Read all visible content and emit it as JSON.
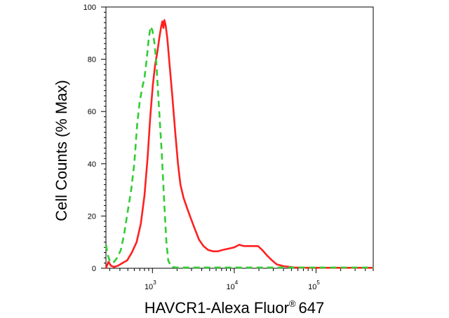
{
  "chart_data": {
    "type": "line",
    "xlabel": "HAVCR1-Alexa Fluor",
    "xlabel_sup": "®",
    "xlabel_suffix": "647",
    "ylabel": "Cell Counts (% Max)",
    "x_scale": "log",
    "xlim": [
      270,
      500000
    ],
    "ylim": [
      0,
      100
    ],
    "y_ticks": [
      0,
      20,
      40,
      60,
      80,
      100
    ],
    "x_ticks": [
      {
        "base": "10",
        "exp": "3",
        "value": 1000
      },
      {
        "base": "10",
        "exp": "4",
        "value": 10000
      },
      {
        "base": "10",
        "exp": "5",
        "value": 100000
      }
    ],
    "series": [
      {
        "color": "#ff2020",
        "dash": "solid",
        "points": [
          [
            270,
            0
          ],
          [
            290,
            2.5
          ],
          [
            310,
            1
          ],
          [
            340,
            0.5
          ],
          [
            380,
            1
          ],
          [
            430,
            2
          ],
          [
            490,
            3
          ],
          [
            560,
            6
          ],
          [
            640,
            10
          ],
          [
            720,
            17
          ],
          [
            800,
            28
          ],
          [
            870,
            42
          ],
          [
            940,
            58
          ],
          [
            1010,
            70
          ],
          [
            1080,
            78
          ],
          [
            1150,
            83
          ],
          [
            1210,
            88
          ],
          [
            1270,
            92
          ],
          [
            1320,
            94.5
          ],
          [
            1360,
            92
          ],
          [
            1400,
            95
          ],
          [
            1450,
            93
          ],
          [
            1520,
            88
          ],
          [
            1620,
            78
          ],
          [
            1760,
            65
          ],
          [
            1900,
            52
          ],
          [
            2050,
            40
          ],
          [
            2200,
            32
          ],
          [
            2400,
            27
          ],
          [
            2650,
            23
          ],
          [
            2950,
            19
          ],
          [
            3300,
            15
          ],
          [
            3700,
            11
          ],
          [
            4200,
            8.5
          ],
          [
            4800,
            7
          ],
          [
            5500,
            6.5
          ],
          [
            6300,
            6.5
          ],
          [
            7200,
            7
          ],
          [
            8500,
            7.5
          ],
          [
            10000,
            8
          ],
          [
            11500,
            9
          ],
          [
            13000,
            8.5
          ],
          [
            15000,
            8.5
          ],
          [
            17000,
            8.5
          ],
          [
            19500,
            8.5
          ],
          [
            22000,
            7
          ],
          [
            25000,
            5
          ],
          [
            29000,
            3
          ],
          [
            33000,
            1.5
          ],
          [
            40000,
            0.8
          ],
          [
            55000,
            0.3
          ],
          [
            80000,
            0.2
          ],
          [
            150000,
            0.2
          ],
          [
            300000,
            0.2
          ],
          [
            500000,
            0.2
          ]
        ]
      },
      {
        "color": "#33cc33",
        "dash": "dashed",
        "points": [
          [
            270,
            9
          ],
          [
            285,
            5
          ],
          [
            300,
            3
          ],
          [
            330,
            2
          ],
          [
            370,
            4
          ],
          [
            410,
            7
          ],
          [
            450,
            13
          ],
          [
            500,
            22
          ],
          [
            550,
            30
          ],
          [
            600,
            40
          ],
          [
            650,
            55
          ],
          [
            700,
            64
          ],
          [
            750,
            69
          ],
          [
            800,
            73
          ],
          [
            850,
            80
          ],
          [
            900,
            88
          ],
          [
            950,
            92.5
          ],
          [
            1000,
            91
          ],
          [
            1060,
            86
          ],
          [
            1120,
            78
          ],
          [
            1200,
            62
          ],
          [
            1300,
            44
          ],
          [
            1400,
            24
          ],
          [
            1480,
            10
          ],
          [
            1560,
            3
          ],
          [
            1700,
            0.5
          ],
          [
            2000,
            0.3
          ],
          [
            3000,
            0.3
          ],
          [
            5000,
            0.3
          ],
          [
            10000,
            0.3
          ],
          [
            30000,
            0.3
          ],
          [
            100000,
            0.3
          ],
          [
            500000,
            0.3
          ]
        ]
      }
    ]
  }
}
